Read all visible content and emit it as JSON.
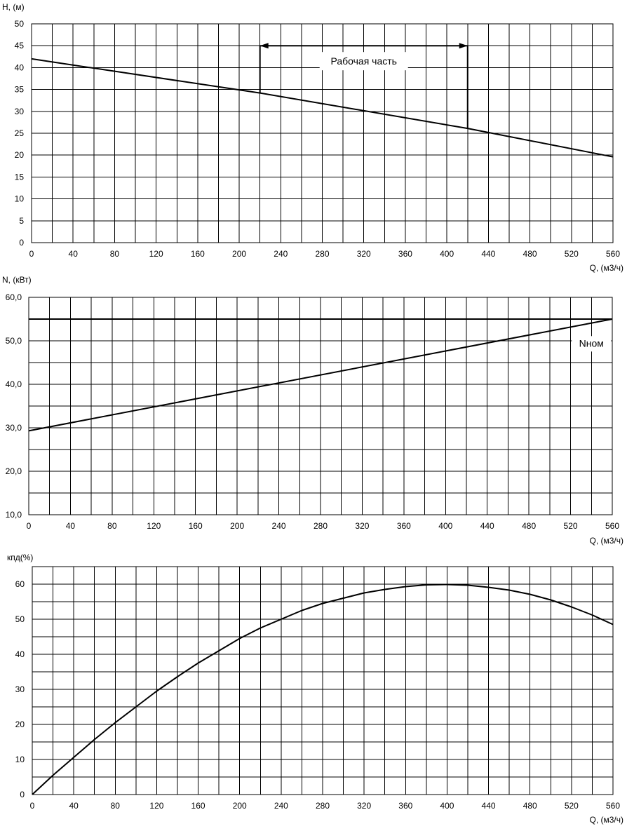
{
  "chart_data": [
    {
      "type": "line",
      "ylabel": "H, (м)",
      "xlabel": "Q, (м3/ч)",
      "xlim": [
        0,
        560
      ],
      "ylim": [
        0,
        50
      ],
      "x_ticks": [
        0,
        40,
        80,
        120,
        160,
        200,
        240,
        280,
        320,
        360,
        400,
        440,
        480,
        520,
        560
      ],
      "y_ticks": [
        0,
        5,
        10,
        15,
        20,
        25,
        30,
        35,
        40,
        45,
        50
      ],
      "grid": true,
      "series": [
        {
          "x": [
            0,
            220,
            420,
            560
          ],
          "y": [
            42,
            34.2,
            26.1,
            19.6
          ]
        }
      ],
      "working_range": {
        "label": "Рабочая часть",
        "x_start": 220,
        "x_end": 420,
        "y_level": 45
      }
    },
    {
      "type": "line",
      "ylabel": "N, (кВт)",
      "xlabel": "Q, (м3/ч)",
      "xlim": [
        0,
        560
      ],
      "ylim": [
        10,
        60
      ],
      "x_ticks": [
        0,
        40,
        80,
        120,
        160,
        200,
        240,
        280,
        320,
        360,
        400,
        440,
        480,
        520,
        560
      ],
      "y_ticks": [
        "10,0",
        "20,0",
        "30,0",
        "40,0",
        "50,0",
        "60,0"
      ],
      "y_tick_values": [
        10,
        20,
        30,
        40,
        50,
        60
      ],
      "grid": true,
      "series": [
        {
          "x": [
            0,
            560
          ],
          "y": [
            29.3,
            55
          ]
        },
        {
          "name": "Nном",
          "x": [
            0,
            560
          ],
          "y": [
            55,
            55
          ]
        }
      ],
      "annotation": {
        "text": "Nном",
        "x": 540,
        "y": 50.6
      }
    },
    {
      "type": "line",
      "ylabel": "кпд(%)",
      "xlabel": "Q, (м3/ч)",
      "xlim": [
        0,
        560
      ],
      "ylim": [
        0,
        65
      ],
      "x_ticks": [
        0,
        40,
        80,
        120,
        160,
        200,
        240,
        280,
        320,
        360,
        400,
        440,
        480,
        520,
        560
      ],
      "y_ticks": [
        0,
        10,
        20,
        30,
        40,
        50,
        60
      ],
      "grid": true,
      "series": [
        {
          "x": [
            0,
            20,
            40,
            60,
            80,
            100,
            120,
            140,
            160,
            180,
            200,
            220,
            240,
            260,
            280,
            300,
            320,
            340,
            360,
            380,
            400,
            420,
            440,
            460,
            480,
            500,
            520,
            540,
            560
          ],
          "y": [
            0,
            5.5,
            10.6,
            15.7,
            20.5,
            25,
            29.5,
            33.6,
            37.5,
            41,
            44.5,
            47.5,
            50,
            52.5,
            54.5,
            56,
            57.5,
            58.5,
            59.3,
            59.8,
            59.9,
            59.7,
            59.1,
            58.3,
            57.1,
            55.5,
            53.5,
            51.2,
            48.5
          ]
        }
      ]
    }
  ]
}
